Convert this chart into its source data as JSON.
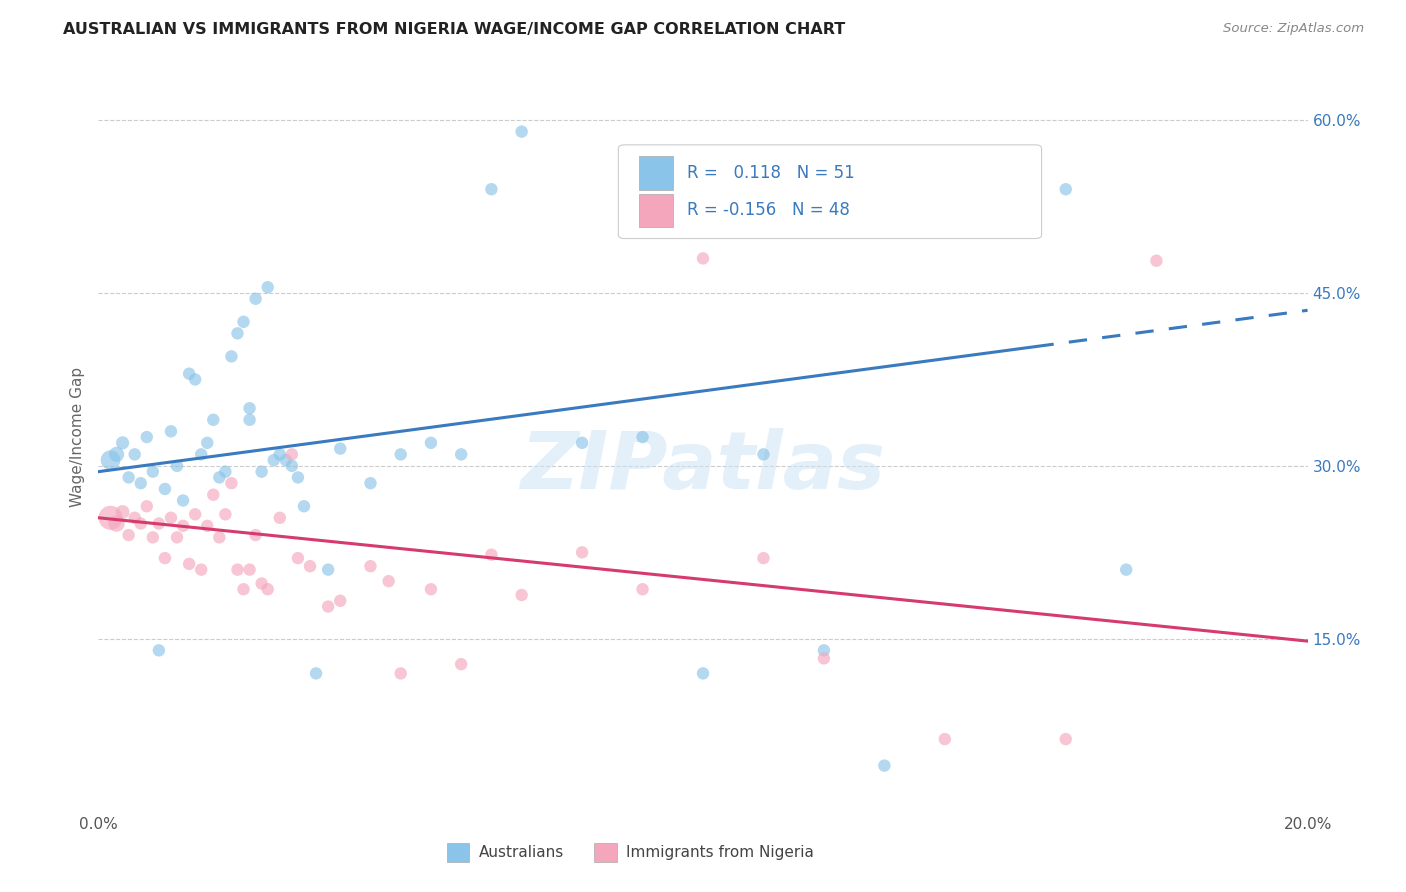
{
  "title": "AUSTRALIAN VS IMMIGRANTS FROM NIGERIA WAGE/INCOME GAP CORRELATION CHART",
  "source": "Source: ZipAtlas.com",
  "ylabel": "Wage/Income Gap",
  "watermark": "ZIPatlas",
  "legend_label1": "Australians",
  "legend_label2": "Immigrants from Nigeria",
  "r1": 0.118,
  "n1": 51,
  "r2": -0.156,
  "n2": 48,
  "color1": "#8ac4e8",
  "color2": "#f4a7bc",
  "trend_color1": "#3a7abf",
  "trend_color2": "#d63b6e",
  "text_color": "#3a7abf",
  "background": "#ffffff",
  "xlim": [
    0.0,
    0.2
  ],
  "ylim": [
    0.0,
    0.65
  ],
  "xticks": [
    0.0,
    0.04,
    0.08,
    0.12,
    0.16,
    0.2
  ],
  "xtick_labels": [
    "0.0%",
    "",
    "",
    "",
    "",
    "20.0%"
  ],
  "ytick_positions": [
    0.15,
    0.3,
    0.45,
    0.6
  ],
  "ytick_labels": [
    "15.0%",
    "30.0%",
    "45.0%",
    "60.0%"
  ],
  "aus_trend_x": [
    0.0,
    0.2
  ],
  "aus_trend_y": [
    0.295,
    0.435
  ],
  "aus_trend_solid_end": 0.155,
  "nga_trend_x": [
    0.0,
    0.2
  ],
  "nga_trend_y": [
    0.255,
    0.148
  ],
  "aus_x": [
    0.002,
    0.003,
    0.004,
    0.005,
    0.006,
    0.007,
    0.008,
    0.009,
    0.01,
    0.011,
    0.012,
    0.013,
    0.014,
    0.015,
    0.016,
    0.017,
    0.018,
    0.019,
    0.02,
    0.021,
    0.022,
    0.023,
    0.024,
    0.025,
    0.026,
    0.028,
    0.03,
    0.032,
    0.034,
    0.036,
    0.038,
    0.04,
    0.045,
    0.05,
    0.055,
    0.06,
    0.065,
    0.07,
    0.08,
    0.09,
    0.1,
    0.11,
    0.12,
    0.13,
    0.16,
    0.17,
    0.025,
    0.027,
    0.029,
    0.031,
    0.033
  ],
  "aus_y": [
    0.305,
    0.31,
    0.32,
    0.29,
    0.31,
    0.285,
    0.325,
    0.295,
    0.14,
    0.28,
    0.33,
    0.3,
    0.27,
    0.38,
    0.375,
    0.31,
    0.32,
    0.34,
    0.29,
    0.295,
    0.395,
    0.415,
    0.425,
    0.34,
    0.445,
    0.455,
    0.31,
    0.3,
    0.265,
    0.12,
    0.21,
    0.315,
    0.285,
    0.31,
    0.32,
    0.31,
    0.54,
    0.59,
    0.32,
    0.325,
    0.12,
    0.31,
    0.14,
    0.04,
    0.54,
    0.21,
    0.35,
    0.295,
    0.305,
    0.305,
    0.29
  ],
  "nga_x": [
    0.002,
    0.003,
    0.004,
    0.005,
    0.006,
    0.007,
    0.008,
    0.009,
    0.01,
    0.011,
    0.012,
    0.013,
    0.014,
    0.015,
    0.016,
    0.017,
    0.018,
    0.019,
    0.02,
    0.021,
    0.022,
    0.023,
    0.024,
    0.025,
    0.026,
    0.028,
    0.03,
    0.032,
    0.035,
    0.038,
    0.04,
    0.045,
    0.048,
    0.05,
    0.055,
    0.06,
    0.065,
    0.07,
    0.08,
    0.09,
    0.1,
    0.11,
    0.12,
    0.14,
    0.16,
    0.175,
    0.027,
    0.033
  ],
  "nga_y": [
    0.255,
    0.25,
    0.26,
    0.24,
    0.255,
    0.25,
    0.265,
    0.238,
    0.25,
    0.22,
    0.255,
    0.238,
    0.248,
    0.215,
    0.258,
    0.21,
    0.248,
    0.275,
    0.238,
    0.258,
    0.285,
    0.21,
    0.193,
    0.21,
    0.24,
    0.193,
    0.255,
    0.31,
    0.213,
    0.178,
    0.183,
    0.213,
    0.2,
    0.12,
    0.193,
    0.128,
    0.223,
    0.188,
    0.225,
    0.193,
    0.48,
    0.22,
    0.133,
    0.063,
    0.063,
    0.478,
    0.198,
    0.22
  ],
  "aus_sizes": [
    200,
    120,
    90,
    80,
    80,
    80,
    80,
    80,
    80,
    80,
    80,
    80,
    80,
    80,
    80,
    80,
    80,
    80,
    80,
    80,
    80,
    80,
    80,
    80,
    80,
    80,
    80,
    80,
    80,
    80,
    80,
    80,
    80,
    80,
    80,
    80,
    80,
    80,
    80,
    80,
    80,
    80,
    80,
    80,
    80,
    80,
    80,
    80,
    80,
    80,
    80
  ],
  "nga_sizes": [
    300,
    140,
    100,
    80,
    80,
    80,
    80,
    80,
    80,
    80,
    80,
    80,
    80,
    80,
    80,
    80,
    80,
    80,
    80,
    80,
    80,
    80,
    80,
    80,
    80,
    80,
    80,
    80,
    80,
    80,
    80,
    80,
    80,
    80,
    80,
    80,
    80,
    80,
    80,
    80,
    80,
    80,
    80,
    80,
    80,
    80,
    80,
    80
  ]
}
